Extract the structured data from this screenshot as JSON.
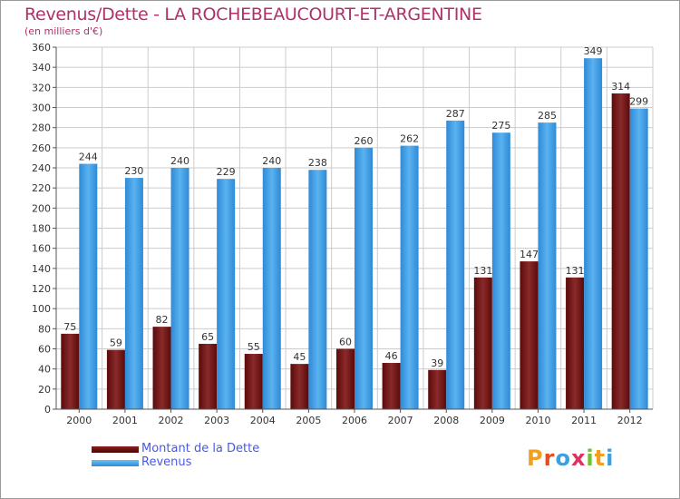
{
  "title": "Revenus/Dette - LA ROCHEBEAUCOURT-ET-ARGENTINE",
  "subtitle": "(en milliers d'€)",
  "logo_text": "Proxiti",
  "colors": {
    "title": "#b0306a",
    "dette": "#7a1a1a",
    "revenus": "#4aa3e8",
    "legend_text": "#4a5ae0",
    "grid": "#cccccc",
    "axis": "#555555"
  },
  "legend": [
    {
      "label": "Montant de la Dette",
      "color": "#6e0f0f"
    },
    {
      "label": "Revenus",
      "color": "#4aa3e8"
    }
  ],
  "chart_data": {
    "type": "bar",
    "title": "Revenus/Dette - LA ROCHEBEAUCOURT-ET-ARGENTINE",
    "subtitle": "(en milliers d'€)",
    "categories": [
      "2000",
      "2001",
      "2002",
      "2003",
      "2004",
      "2005",
      "2006",
      "2007",
      "2008",
      "2009",
      "2010",
      "2011",
      "2012"
    ],
    "series": [
      {
        "name": "Montant de la Dette",
        "values": [
          75,
          59,
          82,
          65,
          55,
          45,
          60,
          46,
          39,
          131,
          147,
          131,
          314
        ]
      },
      {
        "name": "Revenus",
        "values": [
          244,
          230,
          240,
          229,
          240,
          238,
          260,
          262,
          287,
          275,
          285,
          349,
          299
        ]
      }
    ],
    "ylim": [
      0,
      360
    ],
    "yticks": [
      0,
      20,
      40,
      60,
      80,
      100,
      120,
      140,
      160,
      180,
      200,
      220,
      240,
      260,
      280,
      300,
      320,
      340,
      360
    ],
    "grid": true,
    "legend_position": "bottom-left"
  }
}
